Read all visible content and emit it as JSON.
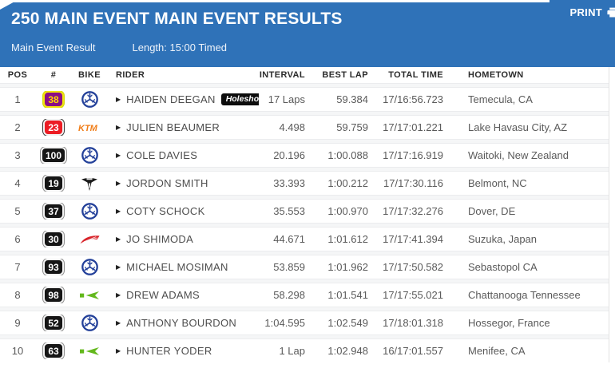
{
  "header": {
    "title": "250 MAIN EVENT MAIN EVENT RESULTS",
    "print_label": "PRINT",
    "tab_label": "Main Event Result",
    "length_label": "Length: 15:00 Timed"
  },
  "colors": {
    "header_bg": "#2f72b8",
    "plate_purple": "#8a0d86",
    "plate_yellow_border": "#f2e30e",
    "plate_yellow_text": "#ffd900",
    "plate_red": "#ec1c24",
    "plate_black": "#161616",
    "yamaha_blue": "#24419a",
    "ktm_orange": "#f07d18",
    "honda_red": "#d8232a",
    "kawasaki_green": "#63b81c",
    "triumph_black": "#1a1a1a"
  },
  "table": {
    "columns": [
      "POS",
      "#",
      "BIKE",
      "RIDER",
      "INTERVAL",
      "BEST LAP",
      "TOTAL TIME",
      "HOMETOWN"
    ],
    "rows": [
      {
        "pos": "1",
        "number": "38",
        "plate_style": "purple-yellow",
        "bike": "yamaha",
        "rider": "HAIDEN DEEGAN",
        "badge": "Holeshot",
        "interval": "17 Laps",
        "best_lap": "59.384",
        "total_time": "17/16:56.723",
        "hometown": "Temecula, CA"
      },
      {
        "pos": "2",
        "number": "23",
        "plate_style": "red-white",
        "bike": "ktm",
        "rider": "JULIEN BEAUMER",
        "badge": "",
        "interval": "4.498",
        "best_lap": "59.759",
        "total_time": "17/17:01.221",
        "hometown": "Lake Havasu City, AZ"
      },
      {
        "pos": "3",
        "number": "100",
        "plate_style": "black-white",
        "bike": "yamaha",
        "rider": "COLE DAVIES",
        "badge": "",
        "interval": "20.196",
        "best_lap": "1:00.088",
        "total_time": "17/17:16.919",
        "hometown": "Waitoki, New Zealand"
      },
      {
        "pos": "4",
        "number": "19",
        "plate_style": "black-white",
        "bike": "triumph",
        "rider": "JORDON SMITH",
        "badge": "",
        "interval": "33.393",
        "best_lap": "1:00.212",
        "total_time": "17/17:30.116",
        "hometown": "Belmont, NC"
      },
      {
        "pos": "5",
        "number": "37",
        "plate_style": "black-white",
        "bike": "yamaha",
        "rider": "COTY SCHOCK",
        "badge": "",
        "interval": "35.553",
        "best_lap": "1:00.970",
        "total_time": "17/17:32.276",
        "hometown": "Dover, DE"
      },
      {
        "pos": "6",
        "number": "30",
        "plate_style": "black-white",
        "bike": "honda",
        "rider": "JO SHIMODA",
        "badge": "",
        "interval": "44.671",
        "best_lap": "1:01.612",
        "total_time": "17/17:41.394",
        "hometown": "Suzuka, Japan"
      },
      {
        "pos": "7",
        "number": "93",
        "plate_style": "black-white",
        "bike": "yamaha",
        "rider": "MICHAEL MOSIMAN",
        "badge": "",
        "interval": "53.859",
        "best_lap": "1:01.962",
        "total_time": "17/17:50.582",
        "hometown": "Sebastopol CA"
      },
      {
        "pos": "8",
        "number": "98",
        "plate_style": "black-white",
        "bike": "kawasaki",
        "rider": "DREW ADAMS",
        "badge": "",
        "interval": "58.298",
        "best_lap": "1:01.541",
        "total_time": "17/17:55.021",
        "hometown": "Chattanooga Tennessee"
      },
      {
        "pos": "9",
        "number": "52",
        "plate_style": "black-white",
        "bike": "yamaha",
        "rider": "ANTHONY BOURDON",
        "badge": "",
        "interval": "1:04.595",
        "best_lap": "1:02.549",
        "total_time": "17/18:01.318",
        "hometown": "Hossegor, France"
      },
      {
        "pos": "10",
        "number": "63",
        "plate_style": "black-white",
        "bike": "kawasaki",
        "rider": "HUNTER YODER",
        "badge": "",
        "interval": "1 Lap",
        "best_lap": "1:02.948",
        "total_time": "16/17:01.557",
        "hometown": "Menifee, CA"
      }
    ]
  }
}
